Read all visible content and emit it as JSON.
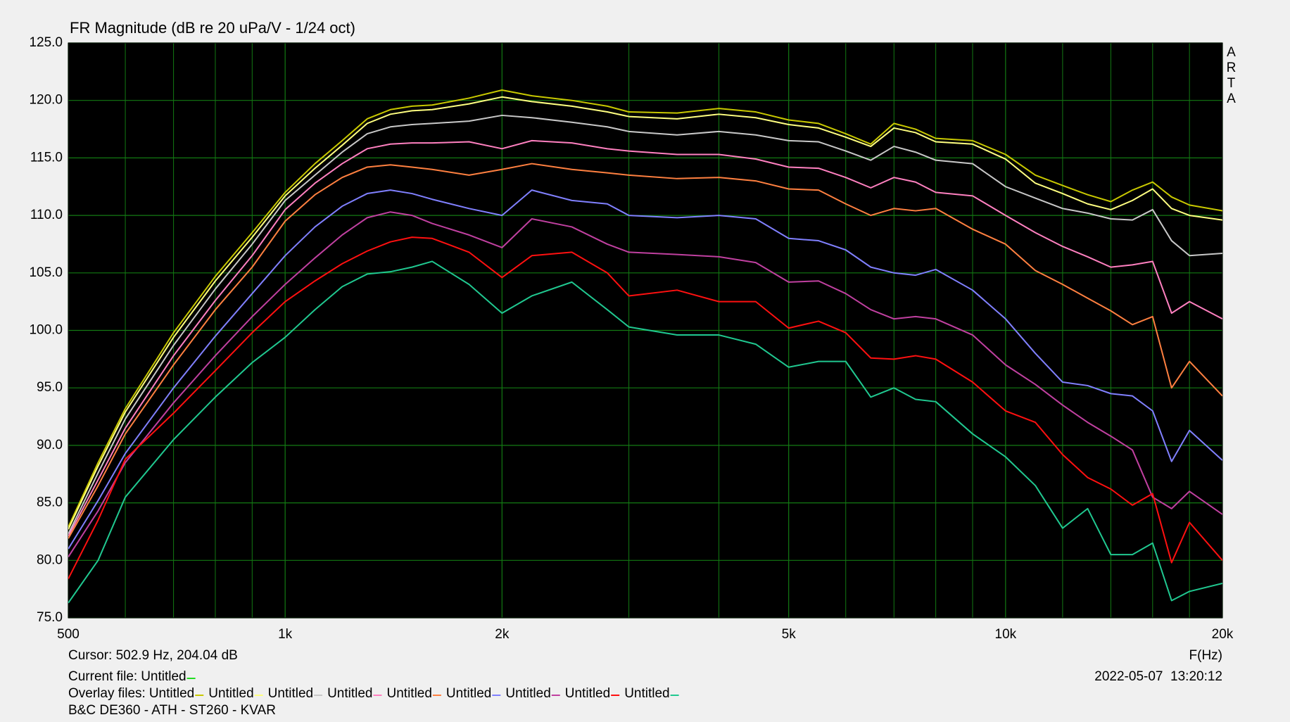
{
  "chart_data": {
    "type": "line",
    "title": "FR Magnitude (dB re 20 uPa/V - 1/24 oct)",
    "side_label": "ARTA",
    "x_label": "F(Hz)",
    "log_x": true,
    "grid": true,
    "grid_color": "#137a13",
    "xlim": [
      500,
      20000
    ],
    "xticks": [
      500,
      {
        "value": 1000,
        "label": "1k"
      },
      {
        "value": 2000,
        "label": "2k"
      },
      {
        "value": 5000,
        "label": "5k"
      },
      {
        "value": 10000,
        "label": "10k"
      },
      {
        "value": 20000,
        "label": "20k"
      }
    ],
    "xgrid_minor": [
      600,
      700,
      800,
      900,
      3000,
      4000,
      6000,
      7000,
      8000,
      9000,
      12000,
      14000,
      16000,
      18000
    ],
    "ylim": [
      75,
      125
    ],
    "yticks": [
      {
        "value": 75,
        "label": "75.0"
      },
      {
        "value": 80,
        "label": "80.0"
      },
      {
        "value": 85,
        "label": "85.0"
      },
      {
        "value": 90,
        "label": "90.0"
      },
      {
        "value": 95,
        "label": "95.0"
      },
      {
        "value": 100,
        "label": "100.0"
      },
      {
        "value": 105,
        "label": "105.0"
      },
      {
        "value": 110,
        "label": "110.0"
      },
      {
        "value": 115,
        "label": "115.0"
      },
      {
        "value": 120,
        "label": "120.0"
      },
      {
        "value": 125,
        "label": "125.0"
      }
    ],
    "cursor": "Cursor: 502.9 Hz, 204.04 dB",
    "timestamp": "2022-05-07  13:20:12",
    "current_file": {
      "label": "Current file:",
      "name": "Untitled",
      "color": "#22dd22"
    },
    "overlay_label": "Overlay files:",
    "footer": "B&C DE360 - ATH - ST260 - KVAR",
    "x": [
      500,
      550,
      600,
      700,
      800,
      900,
      1000,
      1100,
      1200,
      1300,
      1400,
      1500,
      1600,
      1800,
      2000,
      2200,
      2500,
      2800,
      3000,
      3500,
      4000,
      4500,
      5000,
      5500,
      6000,
      6500,
      7000,
      7500,
      8000,
      9000,
      10000,
      11000,
      12000,
      13000,
      14000,
      15000,
      16000,
      17000,
      18000,
      20000
    ],
    "series": [
      {
        "name": "Untitled",
        "color": "#c8c800",
        "values": [
          82.9,
          88.5,
          93.2,
          99.8,
          104.7,
          108.5,
          112.0,
          114.5,
          116.5,
          118.4,
          119.2,
          119.5,
          119.6,
          120.2,
          120.9,
          120.4,
          120.0,
          119.5,
          119.0,
          118.9,
          119.3,
          119.0,
          118.3,
          118.0,
          117.1,
          116.2,
          118.0,
          117.5,
          116.7,
          116.5,
          115.3,
          113.5,
          112.6,
          111.8,
          111.2,
          112.2,
          112.9,
          111.6,
          110.9,
          110.4
        ]
      },
      {
        "name": "Untitled",
        "color": "#ffff80",
        "values": [
          82.7,
          88.2,
          92.9,
          99.4,
          104.3,
          108.1,
          111.7,
          114.1,
          116.1,
          118.0,
          118.8,
          119.1,
          119.2,
          119.7,
          120.3,
          119.9,
          119.5,
          119.0,
          118.6,
          118.4,
          118.8,
          118.5,
          117.9,
          117.6,
          116.8,
          116.0,
          117.6,
          117.2,
          116.4,
          116.2,
          114.9,
          112.8,
          111.9,
          111.0,
          110.5,
          111.3,
          112.3,
          110.6,
          110.0,
          109.6
        ]
      },
      {
        "name": "Untitled",
        "color": "#c8c8c8",
        "values": [
          82.3,
          87.6,
          92.3,
          98.7,
          103.6,
          107.5,
          111.3,
          113.5,
          115.5,
          117.1,
          117.7,
          117.9,
          118.0,
          118.2,
          118.7,
          118.5,
          118.1,
          117.7,
          117.3,
          117.0,
          117.3,
          117.0,
          116.5,
          116.4,
          115.6,
          114.8,
          116.0,
          115.5,
          114.8,
          114.5,
          112.5,
          111.5,
          110.6,
          110.2,
          109.7,
          109.6,
          110.5,
          107.8,
          106.5,
          106.7
        ]
      },
      {
        "name": "Untitled",
        "color": "#ff80c0",
        "values": [
          82.1,
          87.0,
          91.5,
          97.8,
          102.6,
          106.5,
          110.5,
          112.8,
          114.5,
          115.8,
          116.2,
          116.3,
          116.3,
          116.4,
          115.8,
          116.5,
          116.3,
          115.8,
          115.6,
          115.3,
          115.3,
          114.9,
          114.2,
          114.1,
          113.3,
          112.4,
          113.3,
          112.9,
          112.0,
          111.7,
          110.0,
          108.5,
          107.3,
          106.4,
          105.5,
          105.7,
          106.0,
          101.5,
          102.5,
          101.0
        ]
      },
      {
        "name": "Untitled",
        "color": "#ff8040",
        "values": [
          81.9,
          86.5,
          91.0,
          97.0,
          101.8,
          105.5,
          109.5,
          111.8,
          113.3,
          114.2,
          114.4,
          114.2,
          114.0,
          113.5,
          114.0,
          114.5,
          114.0,
          113.7,
          113.5,
          113.2,
          113.3,
          113.0,
          112.3,
          112.2,
          111.0,
          110.0,
          110.6,
          110.4,
          110.6,
          108.8,
          107.5,
          105.2,
          104.0,
          102.8,
          101.7,
          100.5,
          101.2,
          95.0,
          97.3,
          94.3
        ]
      },
      {
        "name": "Untitled",
        "color": "#8080ff",
        "values": [
          81.0,
          85.2,
          89.3,
          95.0,
          99.5,
          103.2,
          106.5,
          109.0,
          110.8,
          111.9,
          112.2,
          111.9,
          111.4,
          110.6,
          110.0,
          112.2,
          111.3,
          111.0,
          110.0,
          109.8,
          110.0,
          109.7,
          108.0,
          107.8,
          107.0,
          105.5,
          105.0,
          104.8,
          105.3,
          103.5,
          101.0,
          98.0,
          95.5,
          95.2,
          94.5,
          94.3,
          93.0,
          88.6,
          91.3,
          88.7
        ]
      },
      {
        "name": "Untitled",
        "color": "#c040a0",
        "values": [
          80.3,
          84.3,
          88.5,
          93.7,
          97.8,
          101.2,
          104.0,
          106.3,
          108.3,
          109.8,
          110.3,
          110.0,
          109.3,
          108.3,
          107.2,
          109.7,
          109.0,
          107.5,
          106.8,
          106.6,
          106.4,
          105.9,
          104.2,
          104.3,
          103.2,
          101.8,
          101.0,
          101.2,
          101.0,
          99.6,
          97.0,
          95.3,
          93.5,
          92.0,
          90.8,
          89.6,
          85.5,
          84.5,
          86.0,
          84.0
        ]
      },
      {
        "name": "Untitled",
        "color": "#ff1010",
        "values": [
          78.4,
          83.5,
          88.8,
          92.8,
          96.5,
          99.8,
          102.5,
          104.3,
          105.8,
          106.9,
          107.7,
          108.1,
          108.0,
          106.8,
          104.6,
          106.5,
          106.8,
          105.0,
          103.0,
          103.5,
          102.5,
          102.5,
          100.2,
          100.8,
          99.8,
          97.6,
          97.5,
          97.8,
          97.5,
          95.5,
          93.0,
          92.0,
          89.2,
          87.2,
          86.2,
          84.8,
          85.8,
          79.8,
          83.3,
          80.0
        ]
      },
      {
        "name": "Untitled",
        "color": "#20c890",
        "values": [
          76.3,
          80.0,
          85.5,
          90.5,
          94.2,
          97.2,
          99.4,
          101.8,
          103.8,
          104.9,
          105.1,
          105.5,
          106.0,
          104.0,
          101.5,
          103.0,
          104.2,
          101.8,
          100.3,
          99.6,
          99.6,
          98.8,
          96.8,
          97.3,
          97.3,
          94.2,
          95.0,
          94.0,
          93.8,
          91.0,
          89.0,
          86.5,
          82.8,
          84.5,
          80.5,
          80.5,
          81.5,
          76.5,
          77.3,
          78.0
        ]
      }
    ]
  }
}
